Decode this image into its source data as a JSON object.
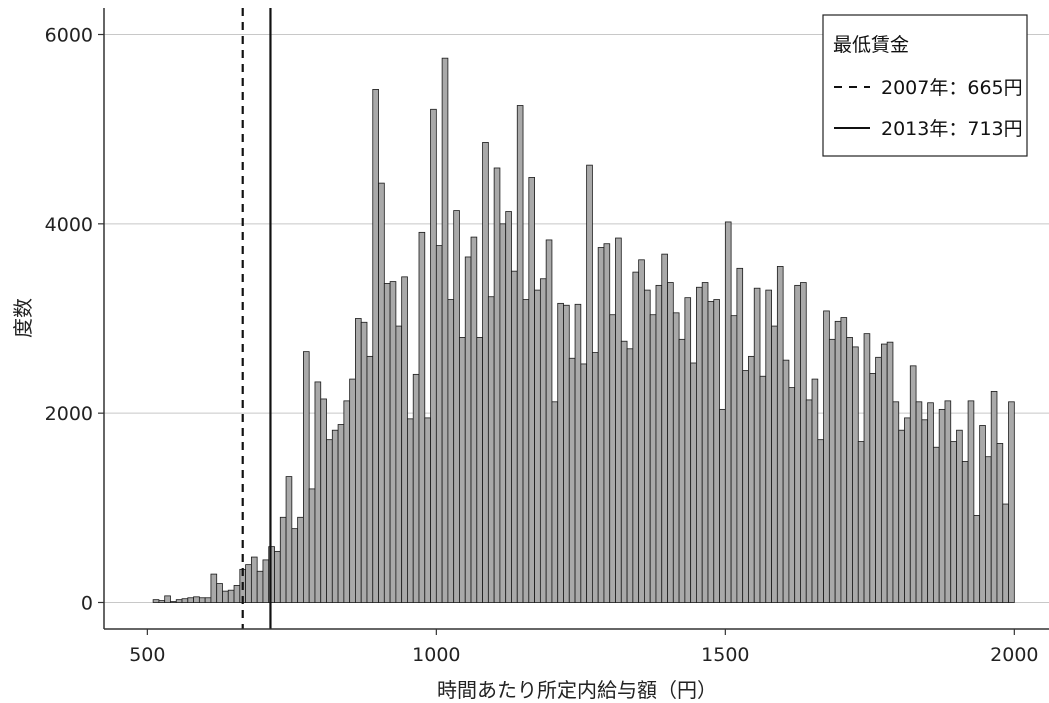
{
  "chart_data": {
    "type": "bar",
    "xlabel": "時間あたり所定内給与額（円）",
    "ylabel": "度数",
    "xlim": [
      425,
      2060
    ],
    "ylim": [
      -280,
      6280
    ],
    "x_ticks": [
      500,
      1000,
      1500,
      2000
    ],
    "x_tick_labels": [
      "500",
      "1000",
      "1500",
      "2000"
    ],
    "y_ticks": [
      0,
      2000,
      4000,
      6000
    ],
    "y_tick_labels": [
      "0",
      "2000",
      "4000",
      "6000"
    ],
    "grid": "horizontal",
    "legend": {
      "title": "最低賃金",
      "placement": "top-right",
      "entries": [
        {
          "label": "2007年：665円",
          "style": "dashed",
          "x": 665
        },
        {
          "label": "2013年：713円",
          "style": "solid",
          "x": 713
        }
      ]
    },
    "bin_width": 10,
    "bin_starts": [
      510,
      520,
      530,
      540,
      550,
      560,
      570,
      580,
      590,
      600,
      610,
      620,
      630,
      640,
      650,
      660,
      670,
      680,
      690,
      700,
      710,
      720,
      730,
      740,
      750,
      760,
      770,
      780,
      790,
      800,
      810,
      820,
      830,
      840,
      850,
      860,
      870,
      880,
      890,
      900,
      910,
      920,
      930,
      940,
      950,
      960,
      970,
      980,
      990,
      1000,
      1010,
      1020,
      1030,
      1040,
      1050,
      1060,
      1070,
      1080,
      1090,
      1100,
      1110,
      1120,
      1130,
      1140,
      1150,
      1160,
      1170,
      1180,
      1190,
      1200,
      1210,
      1220,
      1230,
      1240,
      1250,
      1260,
      1270,
      1280,
      1290,
      1300,
      1310,
      1320,
      1330,
      1340,
      1350,
      1360,
      1370,
      1380,
      1390,
      1400,
      1410,
      1420,
      1430,
      1440,
      1450,
      1460,
      1470,
      1480,
      1490,
      1500,
      1510,
      1520,
      1530,
      1540,
      1550,
      1560,
      1570,
      1580,
      1590,
      1600,
      1610,
      1620,
      1630,
      1640,
      1650,
      1660,
      1670,
      1680,
      1690,
      1700,
      1710,
      1720,
      1730,
      1740,
      1750,
      1760,
      1770,
      1780,
      1790,
      1800,
      1810,
      1820,
      1830,
      1840,
      1850,
      1860,
      1870,
      1880,
      1890,
      1900,
      1910,
      1920,
      1930,
      1940,
      1950,
      1960,
      1970,
      1980,
      1990
    ],
    "values": [
      30,
      20,
      70,
      10,
      30,
      40,
      50,
      60,
      50,
      50,
      300,
      200,
      120,
      130,
      180,
      350,
      400,
      480,
      330,
      450,
      590,
      540,
      900,
      1330,
      780,
      900,
      2650,
      1200,
      2330,
      2150,
      1720,
      1820,
      1880,
      2130,
      2360,
      3000,
      2960,
      2600,
      5420,
      4430,
      3370,
      3390,
      2920,
      3440,
      1940,
      2410,
      3910,
      1950,
      5210,
      3770,
      5750,
      3200,
      4140,
      2800,
      3650,
      3860,
      2800,
      4860,
      3230,
      4590,
      4000,
      4130,
      3500,
      5250,
      3200,
      4490,
      3300,
      3420,
      3830,
      2120,
      3160,
      3140,
      2580,
      3150,
      2520,
      4620,
      2640,
      3750,
      3790,
      3040,
      3850,
      2760,
      2680,
      3490,
      3620,
      3300,
      3040,
      3350,
      3680,
      3380,
      3060,
      2780,
      3220,
      2530,
      3330,
      3380,
      3180,
      3200,
      2040,
      4020,
      3030,
      3530,
      2450,
      2600,
      3320,
      2390,
      3300,
      2920,
      3550,
      2560,
      2270,
      3350,
      3380,
      2140,
      2360,
      1720,
      3080,
      2780,
      2970,
      3010,
      2800,
      2700,
      1700,
      2840,
      2420,
      2590,
      2730,
      2750,
      2120,
      1820,
      1950,
      2500,
      2120,
      1930,
      2110,
      1640,
      2040,
      2130,
      1700,
      1820,
      1490,
      2130,
      920,
      1870,
      1540,
      2230,
      1680,
      1040,
      2120
    ]
  }
}
